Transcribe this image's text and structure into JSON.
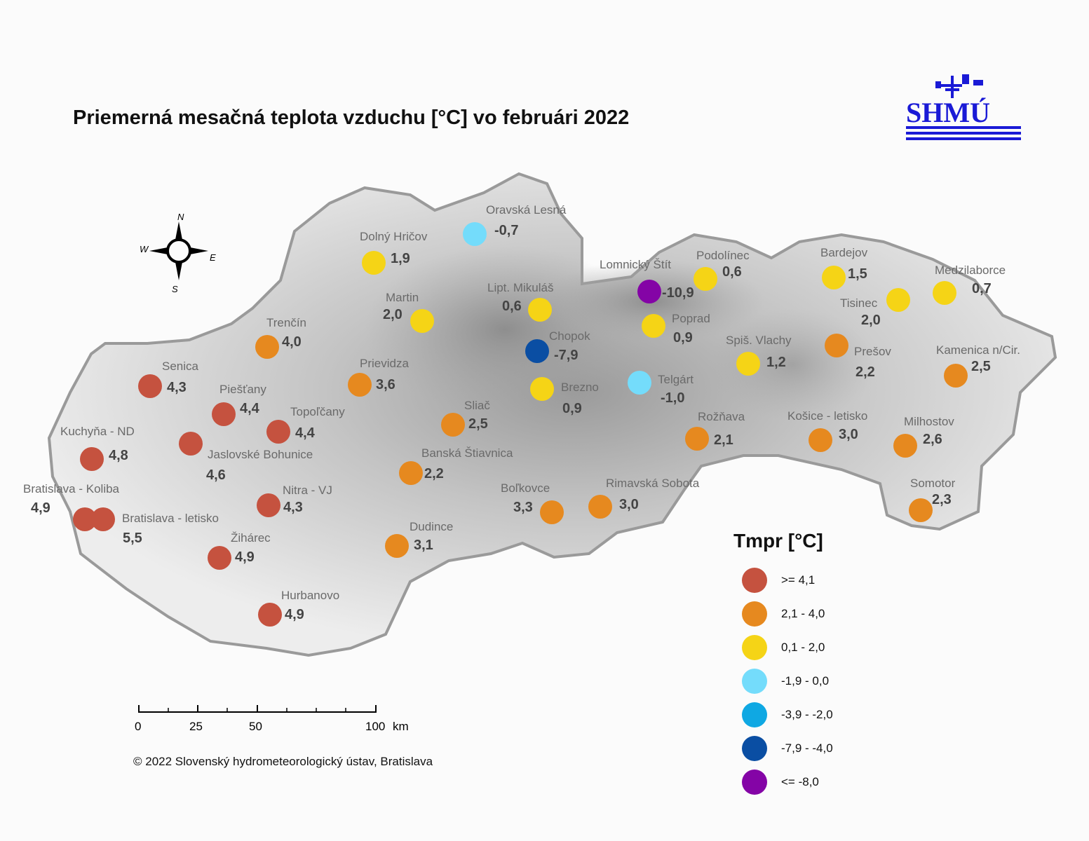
{
  "title": "Priemerná mesačná teplota vzduchu [°C] vo februári 2022",
  "logo_text": "SHMÚ",
  "compass": {
    "n": "N",
    "s": "S",
    "e": "E",
    "w": "W"
  },
  "legend": {
    "title": "Tmpr [°C]",
    "classes": [
      {
        "label": ">= 4,1",
        "color": "#c5523f"
      },
      {
        "label": "2,1 - 4,0",
        "color": "#e6891f"
      },
      {
        "label": "0,1 - 2,0",
        "color": "#f5d416"
      },
      {
        "label": "-1,9 - 0,0",
        "color": "#74dcfb"
      },
      {
        "label": "-3,9 - -2,0",
        "color": "#0fa8e3"
      },
      {
        "label": "-7,9 - -4,0",
        "color": "#0a4ea3"
      },
      {
        "label": "<= -8,0",
        "color": "#8404a6"
      }
    ]
  },
  "scale": {
    "ticks": [
      "0",
      "25",
      "50",
      "100"
    ],
    "unit": "km"
  },
  "copyright": "© 2022 Slovenský hydrometeorologický ústav, Bratislava",
  "stations": [
    {
      "name": "Oravská Lesná",
      "value": "-0,7",
      "cls": 3
    },
    {
      "name": "Dolný Hričov",
      "value": "1,9",
      "cls": 2
    },
    {
      "name": "Lomnický Štít",
      "value": "-10,9",
      "cls": 6
    },
    {
      "name": "Podolínec",
      "value": "0,6",
      "cls": 2
    },
    {
      "name": "Bardejov",
      "value": "1,5",
      "cls": 2
    },
    {
      "name": "Medzilaborce",
      "value": "0,7",
      "cls": 2
    },
    {
      "name": "Martin",
      "value": "2,0",
      "cls": 2
    },
    {
      "name": "Lipt. Mikuláš",
      "value": "0,6",
      "cls": 2
    },
    {
      "name": "Tisinec",
      "value": "2,0",
      "cls": 2
    },
    {
      "name": "Poprad",
      "value": "0,9",
      "cls": 2
    },
    {
      "name": "Trenčín",
      "value": "4,0",
      "cls": 1
    },
    {
      "name": "Chopok",
      "value": "-7,9",
      "cls": 5
    },
    {
      "name": "Prešov",
      "value": "2,2",
      "cls": 1
    },
    {
      "name": "Spiš. Vlachy",
      "value": "1,2",
      "cls": 2
    },
    {
      "name": "Kamenica n/Cir.",
      "value": "2,5",
      "cls": 1
    },
    {
      "name": "Senica",
      "value": "4,3",
      "cls": 0
    },
    {
      "name": "Prievidza",
      "value": "3,6",
      "cls": 1
    },
    {
      "name": "Telgárt",
      "value": "-1,0",
      "cls": 3
    },
    {
      "name": "Brezno",
      "value": "0,9",
      "cls": 2
    },
    {
      "name": "Piešťany",
      "value": "4,4",
      "cls": 0
    },
    {
      "name": "Sliač",
      "value": "2,5",
      "cls": 1
    },
    {
      "name": "Topoľčany",
      "value": "4,4",
      "cls": 0
    },
    {
      "name": "Rožňava",
      "value": "2,1",
      "cls": 1
    },
    {
      "name": "Košice - letisko",
      "value": "3,0",
      "cls": 1
    },
    {
      "name": "Milhostov",
      "value": "2,6",
      "cls": 1
    },
    {
      "name": "Kuchyňa - ND",
      "value": "4,8",
      "cls": 0
    },
    {
      "name": "Jaslovské Bohunice",
      "value": "4,6",
      "cls": 0
    },
    {
      "name": "Banská Štiavnica",
      "value": "2,2",
      "cls": 1
    },
    {
      "name": "Somotor",
      "value": "2,3",
      "cls": 1
    },
    {
      "name": "Bratislava - Koliba",
      "value": "4,9",
      "cls": 0
    },
    {
      "name": "Nitra - VJ",
      "value": "4,3",
      "cls": 0
    },
    {
      "name": "Boľkovce",
      "value": "3,3",
      "cls": 1
    },
    {
      "name": "Rimavská Sobota",
      "value": "3,0",
      "cls": 1
    },
    {
      "name": "Bratislava - letisko",
      "value": "5,5",
      "cls": 0
    },
    {
      "name": "Dudince",
      "value": "3,1",
      "cls": 1
    },
    {
      "name": "Žihárec",
      "value": "4,9",
      "cls": 0
    },
    {
      "name": "Hurbanovo",
      "value": "4,9",
      "cls": 0
    }
  ]
}
